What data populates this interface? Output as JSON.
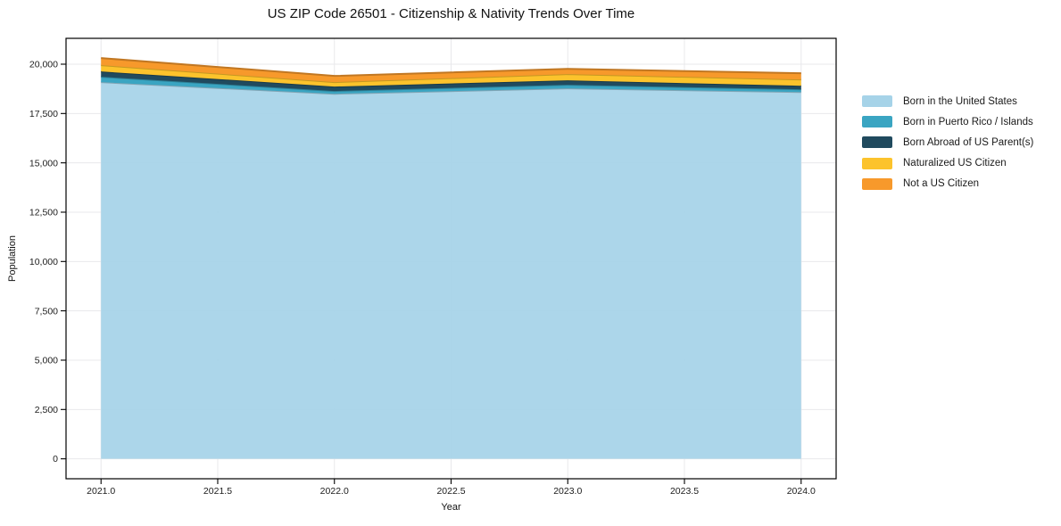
{
  "title": "US ZIP Code 26501 - Citizenship & Nativity Trends Over Time",
  "chart_data": {
    "type": "area",
    "stacked": true,
    "title": "US ZIP Code 26501 - Citizenship & Nativity Trends Over Time",
    "xlabel": "Year",
    "ylabel": "Population",
    "x": [
      2021,
      2022,
      2023,
      2024
    ],
    "series": [
      {
        "name": "Born in the United States",
        "color": "#a6d3e8",
        "values": [
          19090,
          18500,
          18775,
          18590
        ]
      },
      {
        "name": "Born in Puerto Rico / Islands",
        "color": "#3aa5c2",
        "values": [
          270,
          140,
          180,
          135
        ]
      },
      {
        "name": "Born Abroad of US Parent(s)",
        "color": "#204a5e",
        "values": [
          270,
          225,
          225,
          180
        ]
      },
      {
        "name": "Naturalized US Citizen",
        "color": "#fcc32c",
        "values": [
          320,
          225,
          315,
          320
        ]
      },
      {
        "name": "Not a US Citizen",
        "color": "#f7992b",
        "values": [
          360,
          315,
          270,
          315
        ]
      }
    ],
    "xlim": [
      2020.85,
      2024.15
    ],
    "ylim": [
      -1010,
      21310
    ],
    "xticks": [
      2021.0,
      2021.5,
      2022.0,
      2022.5,
      2023.0,
      2023.5,
      2024.0
    ],
    "xtick_labels": [
      "2021.0",
      "2021.5",
      "2022.0",
      "2022.5",
      "2023.0",
      "2023.5",
      "2024.0"
    ],
    "yticks": [
      0,
      2500,
      5000,
      7500,
      10000,
      12500,
      15000,
      17500,
      20000
    ],
    "ytick_labels": [
      "0",
      "2,500",
      "5,000",
      "7,500",
      "10,000",
      "12,500",
      "15,000",
      "17,500",
      "20,000"
    ],
    "grid": true,
    "legend_position": "right-outside",
    "colors": {
      "grid": "#e8e8eb",
      "axis": "#000000",
      "tick_label": "#1c1c1c"
    }
  }
}
